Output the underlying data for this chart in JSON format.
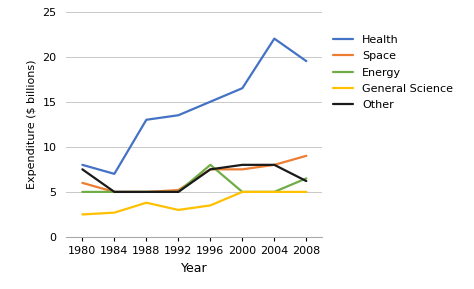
{
  "years": [
    1980,
    1984,
    1988,
    1992,
    1996,
    2000,
    2004,
    2008
  ],
  "series": {
    "Health": [
      8.0,
      7.0,
      13.0,
      13.5,
      15.0,
      16.5,
      22.0,
      19.5
    ],
    "Space": [
      6.0,
      5.0,
      5.0,
      5.2,
      7.5,
      7.5,
      8.0,
      9.0
    ],
    "Energy": [
      5.0,
      5.0,
      5.0,
      5.0,
      8.0,
      5.0,
      5.0,
      6.5
    ],
    "General Science": [
      2.5,
      2.7,
      3.8,
      3.0,
      3.5,
      5.0,
      5.0,
      5.0
    ],
    "Other": [
      7.5,
      5.0,
      5.0,
      5.0,
      7.5,
      8.0,
      8.0,
      6.2
    ]
  },
  "colors": {
    "Health": "#4472c4",
    "Space": "#ed7d31",
    "Energy": "#70ad47",
    "General Science": "#ffc000",
    "Other": "#1a1a1a"
  },
  "xlabel": "Year",
  "ylabel": "Expenditure ($ billions)",
  "ylim": [
    0,
    25
  ],
  "yticks": [
    0,
    5,
    10,
    15,
    20,
    25
  ],
  "xticks": [
    1980,
    1984,
    1988,
    1992,
    1996,
    2000,
    2004,
    2008
  ],
  "background_color": "#ffffff",
  "grid_color": "#c8c8c8",
  "linewidth": 1.6,
  "legend_order": [
    "Health",
    "Space",
    "Energy",
    "General Science",
    "Other"
  ]
}
